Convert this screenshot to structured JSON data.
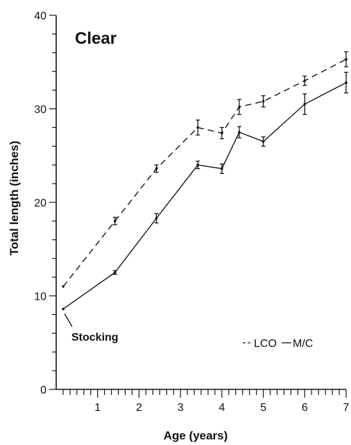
{
  "chart_data": {
    "type": "line",
    "title": "Clear",
    "xlabel": "Age (years)",
    "ylabel": "Total length (inches)",
    "xlim": [
      0,
      7
    ],
    "ylim": [
      0,
      40
    ],
    "x_ticks": [
      1,
      2,
      3,
      4,
      5,
      6,
      7
    ],
    "y_ticks": [
      0,
      10,
      20,
      30,
      40
    ],
    "grid": false,
    "legend_position": "bottom-right",
    "annotation": "Stocking",
    "series": [
      {
        "name": "LCO",
        "style": "dashed",
        "color": "#111111",
        "x": [
          0.17,
          1.42,
          2.42,
          3.42,
          4.0,
          4.42,
          5.0,
          6.0,
          7.0
        ],
        "y": [
          11.0,
          18.0,
          23.6,
          28.0,
          27.4,
          30.2,
          30.8,
          33.0,
          35.3
        ],
        "err": [
          0,
          0.4,
          0.4,
          0.8,
          0.6,
          0.8,
          0.6,
          0.5,
          0.8
        ]
      },
      {
        "name": "M/C",
        "style": "solid",
        "color": "#111111",
        "x": [
          0.17,
          1.42,
          2.42,
          3.42,
          4.0,
          4.42,
          5.0,
          6.0,
          7.0
        ],
        "y": [
          8.6,
          12.5,
          18.3,
          24.0,
          23.6,
          27.5,
          26.5,
          30.5,
          32.8
        ],
        "err": [
          0,
          0.2,
          0.5,
          0.4,
          0.5,
          0.6,
          0.5,
          1.1,
          1.1
        ]
      }
    ]
  }
}
